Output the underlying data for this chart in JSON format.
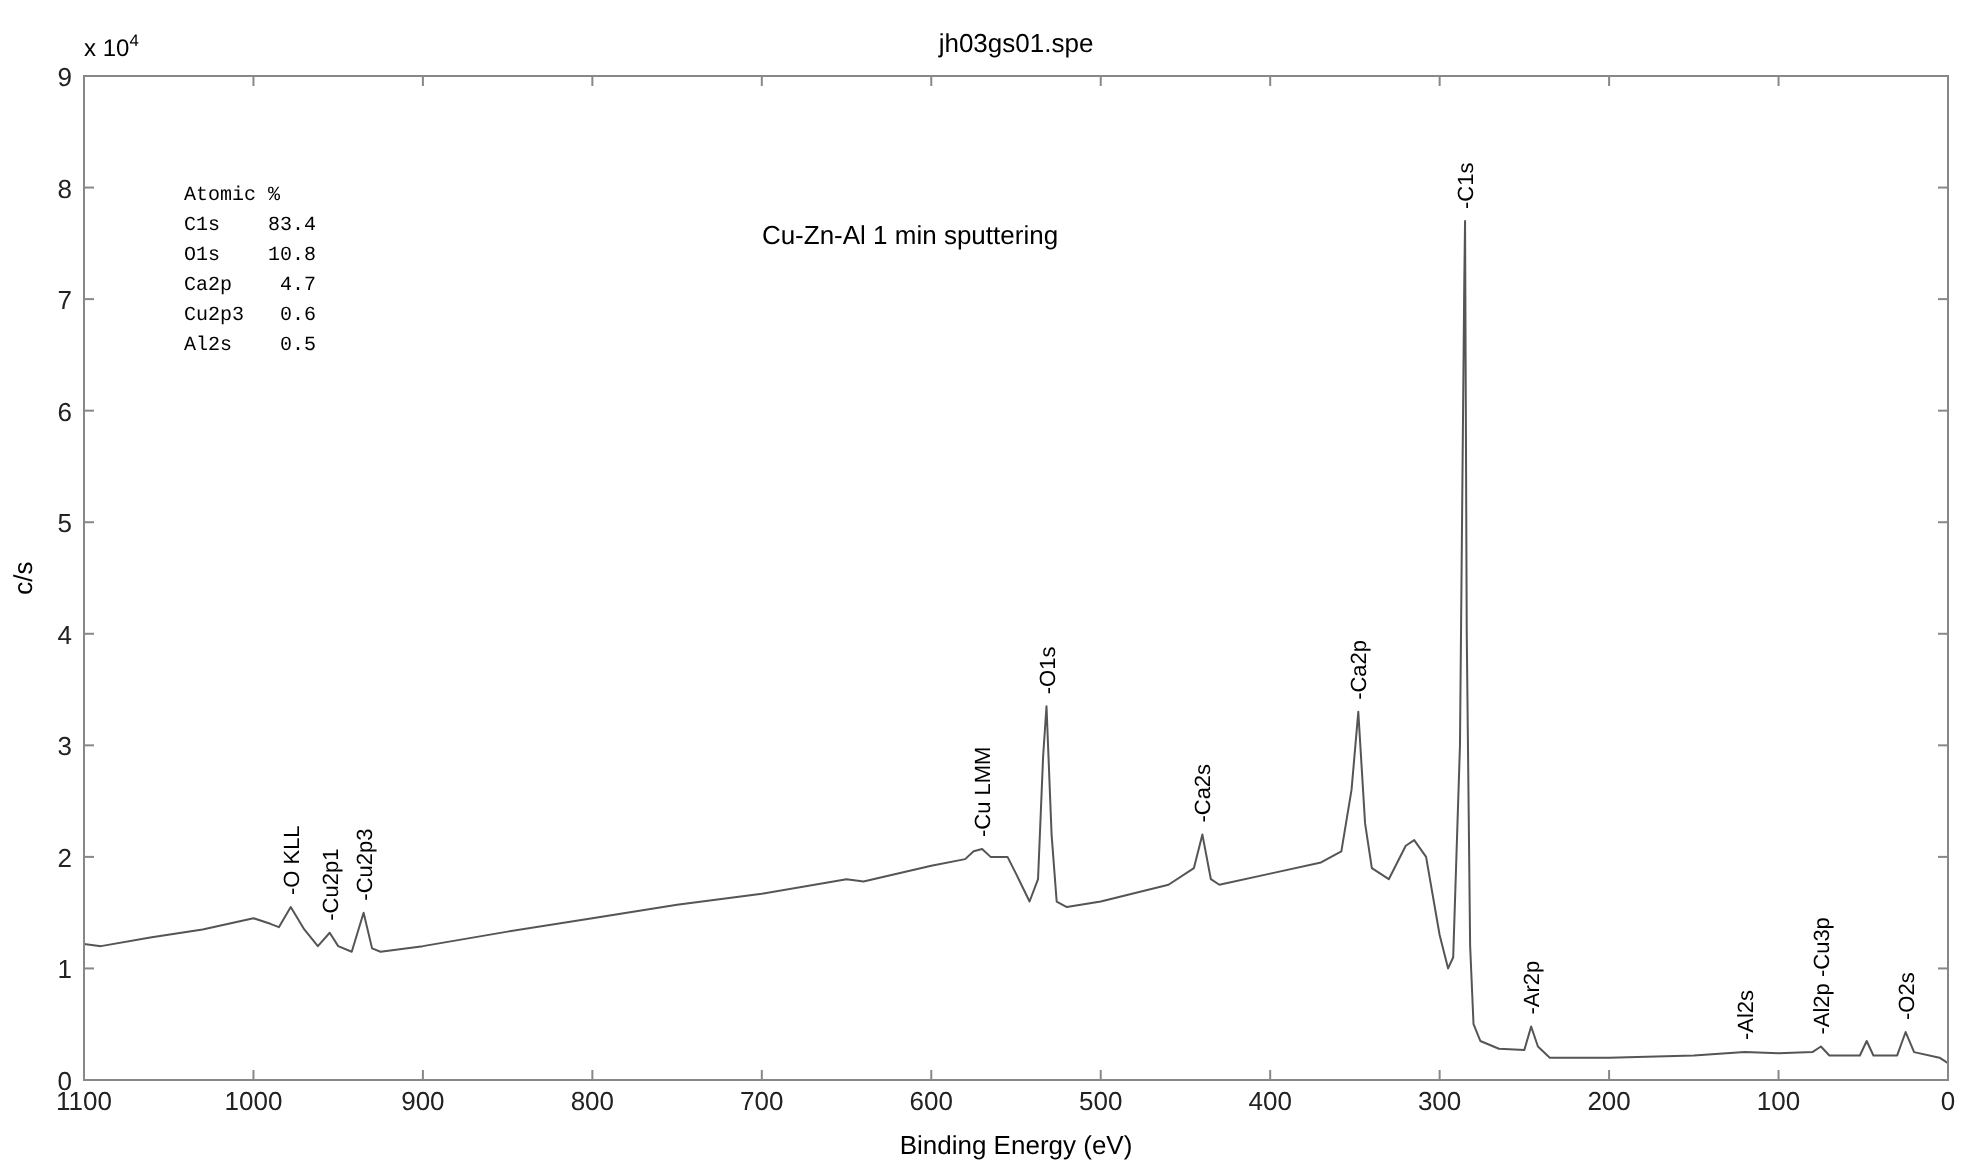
{
  "chart_data": {
    "type": "line",
    "title": "jh03gs01.spe",
    "subtitle": "Cu-Zn-Al  1 min sputtering",
    "xlabel": "Binding Energy (eV)",
    "ylabel": "c/s",
    "xlim": [
      1100,
      0
    ],
    "xticks": [
      1100,
      1000,
      900,
      800,
      700,
      600,
      500,
      400,
      300,
      200,
      100,
      0
    ],
    "ylim": [
      0,
      9
    ],
    "yticks": [
      0,
      1,
      2,
      3,
      4,
      5,
      6,
      7,
      8,
      9
    ],
    "grid": false,
    "marker": "none",
    "line_style": "solid",
    "series": [
      {
        "color": "#555555",
        "x": [
          1100,
          1090,
          1060,
          1030,
          1000,
          990,
          985,
          978,
          970,
          962,
          955,
          950,
          942,
          935,
          930,
          925,
          900,
          850,
          800,
          750,
          700,
          650,
          640,
          600,
          580,
          575,
          570,
          565,
          555,
          550,
          542,
          537,
          534,
          532,
          529,
          526,
          520,
          500,
          460,
          445,
          440,
          435,
          430,
          400,
          370,
          358,
          352,
          348,
          344,
          340,
          330,
          320,
          315,
          308,
          300,
          295,
          292,
          288,
          285.5,
          285,
          284,
          282,
          280,
          276,
          265,
          250,
          246,
          242,
          235,
          200,
          150,
          120,
          100,
          80,
          75,
          70,
          52,
          48,
          44,
          30,
          25,
          20,
          5,
          0
        ],
        "values": [
          1.22,
          1.2,
          1.28,
          1.35,
          1.45,
          1.4,
          1.37,
          1.55,
          1.35,
          1.2,
          1.32,
          1.2,
          1.15,
          1.5,
          1.18,
          1.15,
          1.2,
          1.33,
          1.45,
          1.57,
          1.67,
          1.8,
          1.78,
          1.92,
          1.98,
          2.05,
          2.07,
          2.0,
          2.0,
          1.85,
          1.6,
          1.8,
          2.9,
          3.35,
          2.2,
          1.6,
          1.55,
          1.6,
          1.75,
          1.9,
          2.2,
          1.8,
          1.75,
          1.85,
          1.95,
          2.05,
          2.6,
          3.3,
          2.3,
          1.9,
          1.8,
          2.1,
          2.15,
          2.0,
          1.3,
          1.0,
          1.1,
          3.0,
          7.1,
          7.7,
          4.0,
          1.2,
          0.5,
          0.35,
          0.28,
          0.27,
          0.48,
          0.3,
          0.2,
          0.2,
          0.22,
          0.25,
          0.24,
          0.25,
          0.3,
          0.22,
          0.22,
          0.35,
          0.22,
          0.22,
          0.43,
          0.25,
          0.2,
          0.15
        ]
      }
    ],
    "annotations": [
      "x 10$^{4}$",
      "Atomic %",
      "C1s    83.4",
      "O1s    10.8",
      "Ca2p    4.7",
      "Cu2p3   0.6",
      "Al2s    0.5",
      {
        "text": "-O KLL",
        "x": 978,
        "y": 1.55
      },
      {
        "text": "-Cu2p1",
        "x": 955,
        "y": 1.32
      },
      {
        "text": "-Cu2p3",
        "x": 935,
        "y": 1.5
      },
      {
        "text": "-Cu LMM",
        "x": 570,
        "y": 2.07
      },
      {
        "text": "-O1s",
        "x": 532,
        "y": 3.35
      },
      {
        "text": "-Ca2s",
        "x": 440,
        "y": 2.2
      },
      {
        "text": "-Ca2p",
        "x": 348,
        "y": 3.3
      },
      {
        "text": "-C1s",
        "x": 285,
        "y": 7.7
      },
      {
        "text": "-Ar2p",
        "x": 246,
        "y": 0.48
      },
      {
        "text": "-Al2s",
        "x": 120,
        "y": 0.25
      },
      {
        "text": "-Al2p -Cu3p",
        "x": 75,
        "y": 0.3
      },
      {
        "text": "-O2s",
        "x": 25,
        "y": 0.43
      }
    ]
  }
}
